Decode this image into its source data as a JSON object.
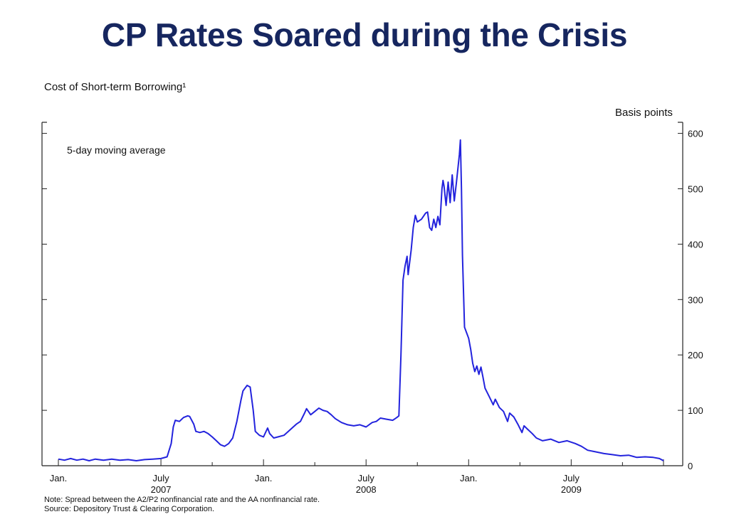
{
  "slide": {
    "title": "CP Rates Soared during the Crisis"
  },
  "chart_data": {
    "type": "line",
    "title": "Cost of Short-term Borrowing¹",
    "annotation": "5-day moving average",
    "ylabel": "Basis points",
    "y_axis_side": "right",
    "ylim": [
      0,
      620
    ],
    "yticks": [
      0,
      100,
      200,
      300,
      400,
      500,
      600
    ],
    "xlim": [
      2007.0,
      2009.95
    ],
    "xticks": [
      {
        "x": 2007.0,
        "label": "Jan.",
        "year": ""
      },
      {
        "x": 2007.5,
        "label": "July",
        "year": "2007"
      },
      {
        "x": 2008.0,
        "label": "Jan.",
        "year": ""
      },
      {
        "x": 2008.5,
        "label": "July",
        "year": "2008"
      },
      {
        "x": 2009.0,
        "label": "Jan.",
        "year": ""
      },
      {
        "x": 2009.5,
        "label": "July",
        "year": "2009"
      }
    ],
    "minor_ticks": [
      2007.25,
      2007.75,
      2008.25,
      2008.75,
      2009.25,
      2009.75
    ],
    "grid": false,
    "line_color": "#2323dd",
    "series": [
      {
        "values": [
          [
            2007.0,
            12
          ],
          [
            2007.03,
            10
          ],
          [
            2007.06,
            13
          ],
          [
            2007.09,
            10
          ],
          [
            2007.12,
            12
          ],
          [
            2007.15,
            9
          ],
          [
            2007.18,
            12
          ],
          [
            2007.22,
            10
          ],
          [
            2007.26,
            12
          ],
          [
            2007.3,
            10
          ],
          [
            2007.34,
            11
          ],
          [
            2007.38,
            9
          ],
          [
            2007.42,
            11
          ],
          [
            2007.46,
            12
          ],
          [
            2007.5,
            13
          ],
          [
            2007.53,
            16
          ],
          [
            2007.55,
            40
          ],
          [
            2007.56,
            70
          ],
          [
            2007.57,
            82
          ],
          [
            2007.59,
            80
          ],
          [
            2007.61,
            87
          ],
          [
            2007.63,
            90
          ],
          [
            2007.64,
            89
          ],
          [
            2007.66,
            75
          ],
          [
            2007.67,
            62
          ],
          [
            2007.69,
            60
          ],
          [
            2007.71,
            62
          ],
          [
            2007.73,
            58
          ],
          [
            2007.75,
            52
          ],
          [
            2007.77,
            45
          ],
          [
            2007.79,
            38
          ],
          [
            2007.81,
            35
          ],
          [
            2007.83,
            40
          ],
          [
            2007.85,
            50
          ],
          [
            2007.87,
            80
          ],
          [
            2007.89,
            118
          ],
          [
            2007.9,
            135
          ],
          [
            2007.92,
            145
          ],
          [
            2007.935,
            142
          ],
          [
            2007.95,
            100
          ],
          [
            2007.96,
            62
          ],
          [
            2007.98,
            55
          ],
          [
            2008.0,
            52
          ],
          [
            2008.02,
            68
          ],
          [
            2008.03,
            58
          ],
          [
            2008.05,
            50
          ],
          [
            2008.07,
            52
          ],
          [
            2008.1,
            55
          ],
          [
            2008.13,
            65
          ],
          [
            2008.16,
            75
          ],
          [
            2008.18,
            80
          ],
          [
            2008.2,
            95
          ],
          [
            2008.21,
            103
          ],
          [
            2008.23,
            92
          ],
          [
            2008.25,
            98
          ],
          [
            2008.27,
            104
          ],
          [
            2008.29,
            100
          ],
          [
            2008.31,
            98
          ],
          [
            2008.33,
            92
          ],
          [
            2008.35,
            85
          ],
          [
            2008.38,
            78
          ],
          [
            2008.41,
            74
          ],
          [
            2008.44,
            72
          ],
          [
            2008.47,
            74
          ],
          [
            2008.5,
            70
          ],
          [
            2008.53,
            78
          ],
          [
            2008.55,
            80
          ],
          [
            2008.57,
            86
          ],
          [
            2008.6,
            84
          ],
          [
            2008.63,
            82
          ],
          [
            2008.65,
            87
          ],
          [
            2008.66,
            90
          ],
          [
            2008.67,
            200
          ],
          [
            2008.68,
            335
          ],
          [
            2008.69,
            360
          ],
          [
            2008.7,
            378
          ],
          [
            2008.705,
            345
          ],
          [
            2008.72,
            390
          ],
          [
            2008.73,
            430
          ],
          [
            2008.74,
            452
          ],
          [
            2008.75,
            440
          ],
          [
            2008.77,
            445
          ],
          [
            2008.79,
            456
          ],
          [
            2008.8,
            458
          ],
          [
            2008.81,
            430
          ],
          [
            2008.82,
            425
          ],
          [
            2008.83,
            445
          ],
          [
            2008.84,
            430
          ],
          [
            2008.85,
            450
          ],
          [
            2008.86,
            435
          ],
          [
            2008.87,
            500
          ],
          [
            2008.875,
            515
          ],
          [
            2008.88,
            505
          ],
          [
            2008.89,
            470
          ],
          [
            2008.9,
            512
          ],
          [
            2008.91,
            475
          ],
          [
            2008.92,
            525
          ],
          [
            2008.93,
            478
          ],
          [
            2008.94,
            510
          ],
          [
            2008.95,
            545
          ],
          [
            2008.955,
            562
          ],
          [
            2008.96,
            588
          ],
          [
            2008.965,
            500
          ],
          [
            2008.97,
            380
          ],
          [
            2008.98,
            250
          ],
          [
            2008.99,
            240
          ],
          [
            2009.0,
            230
          ],
          [
            2009.01,
            210
          ],
          [
            2009.02,
            185
          ],
          [
            2009.03,
            170
          ],
          [
            2009.04,
            180
          ],
          [
            2009.05,
            165
          ],
          [
            2009.06,
            178
          ],
          [
            2009.07,
            160
          ],
          [
            2009.08,
            140
          ],
          [
            2009.1,
            125
          ],
          [
            2009.12,
            110
          ],
          [
            2009.13,
            120
          ],
          [
            2009.15,
            105
          ],
          [
            2009.17,
            98
          ],
          [
            2009.19,
            80
          ],
          [
            2009.2,
            95
          ],
          [
            2009.22,
            88
          ],
          [
            2009.24,
            75
          ],
          [
            2009.26,
            60
          ],
          [
            2009.27,
            72
          ],
          [
            2009.29,
            65
          ],
          [
            2009.31,
            58
          ],
          [
            2009.33,
            50
          ],
          [
            2009.36,
            45
          ],
          [
            2009.4,
            48
          ],
          [
            2009.44,
            42
          ],
          [
            2009.48,
            45
          ],
          [
            2009.52,
            40
          ],
          [
            2009.55,
            35
          ],
          [
            2009.58,
            28
          ],
          [
            2009.62,
            25
          ],
          [
            2009.66,
            22
          ],
          [
            2009.7,
            20
          ],
          [
            2009.74,
            18
          ],
          [
            2009.78,
            19
          ],
          [
            2009.82,
            15
          ],
          [
            2009.86,
            16
          ],
          [
            2009.9,
            15
          ],
          [
            2009.93,
            13
          ],
          [
            2009.95,
            9
          ]
        ]
      }
    ]
  },
  "notes": {
    "note": "Note: Spread between the A2/P2 nonfinancial rate and the AA nonfinancial rate.",
    "source": "Source: Depository Trust & Clearing Corporation."
  }
}
